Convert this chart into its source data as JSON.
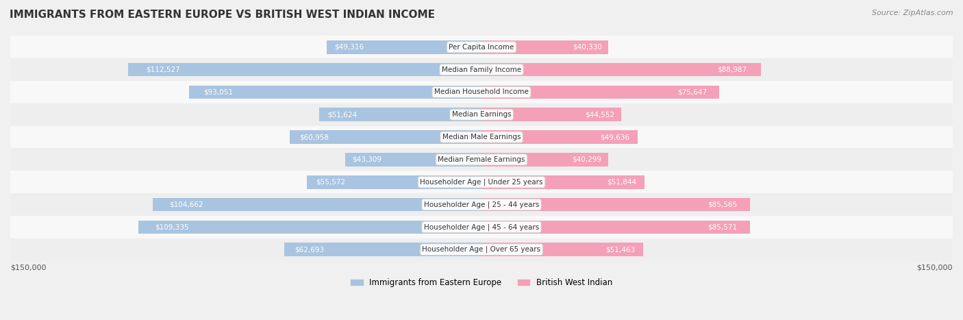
{
  "title": "IMMIGRANTS FROM EASTERN EUROPE VS BRITISH WEST INDIAN INCOME",
  "source": "Source: ZipAtlas.com",
  "categories": [
    "Per Capita Income",
    "Median Family Income",
    "Median Household Income",
    "Median Earnings",
    "Median Male Earnings",
    "Median Female Earnings",
    "Householder Age | Under 25 years",
    "Householder Age | 25 - 44 years",
    "Householder Age | 45 - 64 years",
    "Householder Age | Over 65 years"
  ],
  "left_values": [
    49316,
    112527,
    93051,
    51624,
    60958,
    43309,
    55572,
    104662,
    109335,
    62693
  ],
  "right_values": [
    40330,
    88987,
    75647,
    44552,
    49636,
    40299,
    51844,
    85565,
    85571,
    51463
  ],
  "left_labels": [
    "$49,316",
    "$112,527",
    "$93,051",
    "$51,624",
    "$60,958",
    "$43,309",
    "$55,572",
    "$104,662",
    "$109,335",
    "$62,693"
  ],
  "right_labels": [
    "$40,330",
    "$88,987",
    "$75,647",
    "$44,552",
    "$49,636",
    "$40,299",
    "$51,844",
    "$85,565",
    "$85,571",
    "$51,463"
  ],
  "left_color": "#a8c4e0",
  "left_color_dark": "#6fa8d8",
  "right_color": "#f4a0b8",
  "right_color_dark": "#e87fa0",
  "left_label_color_inside": "#ffffff",
  "left_label_color_outside": "#888888",
  "right_label_color_inside": "#ffffff",
  "right_label_color_outside": "#888888",
  "max_value": 150000,
  "bar_height": 0.6,
  "background_color": "#f5f5f5",
  "row_bg_light": "#f9f9f9",
  "row_bg_dark": "#efefef",
  "legend_left": "Immigrants from Eastern Europe",
  "legend_right": "British West Indian",
  "xlabel_left": "$150,000",
  "xlabel_right": "$150,000"
}
